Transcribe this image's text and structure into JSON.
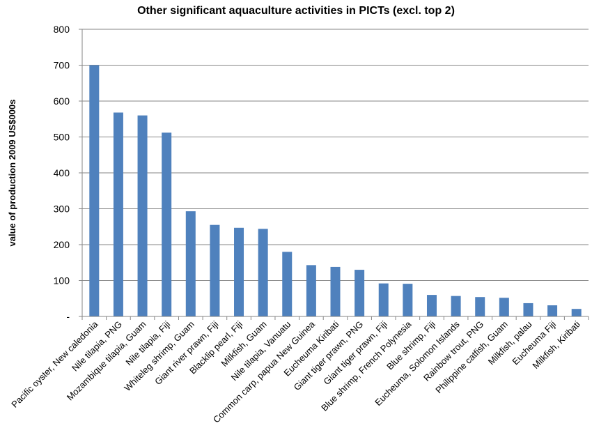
{
  "chart_data": {
    "type": "bar",
    "title": "Other significant aquaculture activities in PICTs (excl. top 2)",
    "xlabel": "",
    "ylabel": "value of production 2009 US$000s",
    "ylim": [
      0,
      800
    ],
    "yticks": [
      0,
      100,
      200,
      300,
      400,
      500,
      600,
      700,
      800
    ],
    "ytick_labels": [
      "-",
      "100",
      "200",
      "300",
      "400",
      "500",
      "600",
      "700",
      "800"
    ],
    "grid": true,
    "legend": "none",
    "bar_color": "#4f81bd",
    "categories": [
      "Pacific oyster, New caledonia",
      "Nile tilapia, PNG",
      "Mozambique tilapia, Guam",
      "Nile tilapia, Fiji",
      "Whiteleg shrimp, Guam",
      "Giant river prawn, Fiji",
      "Blacklip pearl, Fiji",
      "Milkfish, Guam",
      "Nile tilapia, Vanuatu",
      "Common carp, papua New Guinea",
      "Eucheuma Kiribati",
      "Giant tiger prawn, PNG",
      "Giant tiger prawn, Fiji",
      "Blue shrimp, French Polynesia",
      "Blue shrimp, Fiji",
      "Eucheuma, Solomon Islands",
      "Rainbow trout, PNG",
      "Philippine catfish, Guam",
      "Milkfish, palau",
      "Eucheuma Fiji",
      "Milkfish, Kiribati"
    ],
    "values": [
      700,
      568,
      560,
      512,
      293,
      255,
      247,
      244,
      180,
      143,
      138,
      130,
      92,
      91,
      60,
      57,
      54,
      52,
      37,
      31,
      21
    ]
  }
}
